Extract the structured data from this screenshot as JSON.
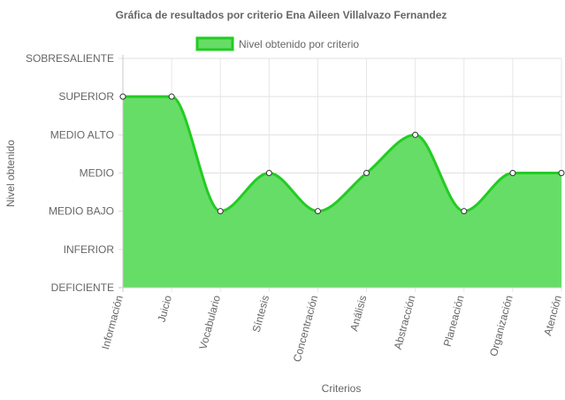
{
  "chart_data": {
    "type": "area",
    "title": "Gráfica de resultados por criterio Ena Aileen Villalvazo Fernandez",
    "xlabel": "Criterios",
    "ylabel": "Nivel obtenido",
    "legend_position": "top",
    "grid": true,
    "y_levels": [
      "DEFICIENTE",
      "INFERIOR",
      "MEDIO BAJO",
      "MEDIO",
      "MEDIO ALTO",
      "SUPERIOR",
      "SOBRESALIENTE"
    ],
    "ylim": [
      0,
      6
    ],
    "categories": [
      "Información",
      "Juicio",
      "Vocabulario",
      "Síntesis",
      "Concentración",
      "Análisis",
      "Abstracción",
      "Planeación",
      "Organización",
      "Atención"
    ],
    "series": [
      {
        "name": "Nivel obtenido por criterio",
        "values": [
          5,
          5,
          2,
          3,
          2,
          3,
          4,
          2,
          3,
          3
        ],
        "value_labels": [
          "SUPERIOR",
          "SUPERIOR",
          "MEDIO BAJO",
          "MEDIO",
          "MEDIO BAJO",
          "MEDIO",
          "MEDIO ALTO",
          "MEDIO BAJO",
          "MEDIO",
          "MEDIO"
        ],
        "line_color": "#22cc22",
        "fill_color": "#66dd66"
      }
    ]
  }
}
